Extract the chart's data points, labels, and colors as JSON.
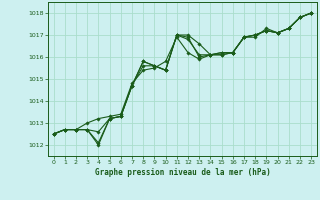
{
  "title": "Graphe pression niveau de la mer (hPa)",
  "bg_color": "#cdf0f0",
  "grid_color": "#aaddcc",
  "line_color": "#1a5c1a",
  "ylim": [
    1011.5,
    1018.5
  ],
  "xlim": [
    -0.5,
    23.5
  ],
  "yticks": [
    1012,
    1013,
    1014,
    1015,
    1016,
    1017,
    1018
  ],
  "xticks": [
    0,
    1,
    2,
    3,
    4,
    5,
    6,
    7,
    8,
    9,
    10,
    11,
    12,
    13,
    14,
    15,
    16,
    17,
    18,
    19,
    20,
    21,
    22,
    23
  ],
  "lines": [
    [
      1012.5,
      1012.7,
      1012.7,
      1012.7,
      1012.0,
      1013.2,
      1013.3,
      1014.7,
      1015.8,
      1015.6,
      1015.4,
      1017.0,
      1017.0,
      1016.6,
      1016.1,
      1016.1,
      1016.2,
      1016.9,
      1016.9,
      1017.3,
      1017.1,
      1017.3,
      1017.8,
      1018.0
    ],
    [
      1012.5,
      1012.7,
      1012.7,
      1012.7,
      1012.1,
      1013.2,
      1013.3,
      1014.7,
      1015.8,
      1015.6,
      1015.4,
      1017.0,
      1016.8,
      1016.1,
      1016.1,
      1016.2,
      1016.2,
      1016.9,
      1017.0,
      1017.2,
      1017.1,
      1017.3,
      1017.8,
      1018.0
    ],
    [
      1012.5,
      1012.7,
      1012.7,
      1013.0,
      1013.2,
      1013.3,
      1013.4,
      1014.8,
      1015.4,
      1015.5,
      1015.8,
      1016.9,
      1016.2,
      1015.9,
      1016.1,
      1016.1,
      1016.2,
      1016.9,
      1017.0,
      1017.2,
      1017.1,
      1017.3,
      1017.8,
      1018.0
    ],
    [
      1012.5,
      1012.7,
      1012.7,
      1012.7,
      1012.6,
      1013.2,
      1013.3,
      1014.7,
      1015.6,
      1015.6,
      1015.4,
      1017.0,
      1016.9,
      1016.0,
      1016.1,
      1016.2,
      1016.2,
      1016.9,
      1017.0,
      1017.2,
      1017.1,
      1017.3,
      1017.8,
      1018.0
    ]
  ]
}
